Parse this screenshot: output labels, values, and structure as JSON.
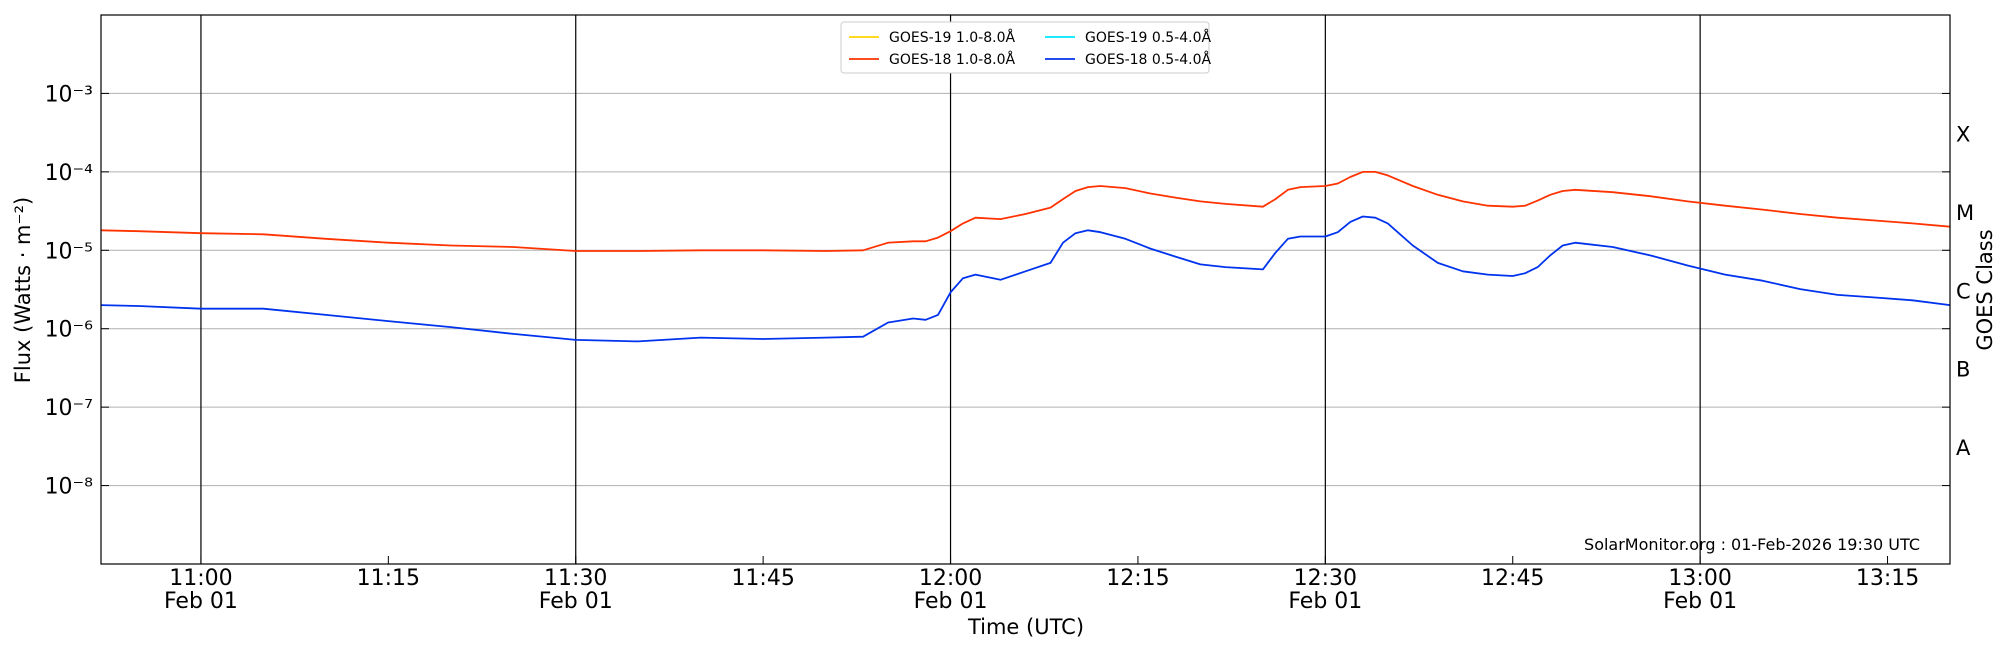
{
  "chart_data": {
    "type": "line",
    "xlabel": "Time (UTC)",
    "ylabel": "Flux (Watts · m⁻²)",
    "y2label": "GOES Class",
    "annotation": "SolarMonitor.org : 01-Feb-2026 19:30 UTC",
    "log_y": true,
    "grid": true,
    "legend": "upper center",
    "xlim": [
      "10:52",
      "13:20"
    ],
    "xticks": [
      {
        "value": "11:00",
        "label": "11:00",
        "date": "Feb 01"
      },
      "11:15",
      {
        "value": "11:30",
        "label": "11:30",
        "date": "Feb 01"
      },
      "11:45",
      {
        "value": "12:00",
        "label": "12:00",
        "date": "Feb 01"
      },
      "12:15",
      {
        "value": "12:30",
        "label": "12:30",
        "date": "Feb 01"
      },
      "12:45",
      {
        "value": "13:00",
        "label": "13:00",
        "date": "Feb 01"
      },
      "13:15"
    ],
    "ylim": [
      1e-09,
      0.01
    ],
    "yticks": [
      {
        "value": 1e-08,
        "label": "10⁻⁸"
      },
      {
        "value": 1e-07,
        "label": "10⁻⁷"
      },
      {
        "value": 1e-06,
        "label": "10⁻⁶"
      },
      {
        "value": 1e-05,
        "label": "10⁻⁵"
      },
      {
        "value": 0.0001,
        "label": "10⁻⁴"
      },
      {
        "value": 0.001,
        "label": "10⁻³"
      }
    ],
    "class_labels": [
      {
        "value": 3e-08,
        "label": "A"
      },
      {
        "value": 3e-07,
        "label": "B"
      },
      {
        "value": 3e-06,
        "label": "C"
      },
      {
        "value": 3e-05,
        "label": "M"
      },
      {
        "value": 0.0003,
        "label": "X"
      }
    ],
    "x": [
      "10:52",
      "10:55",
      "11:00",
      "11:05",
      "11:10",
      "11:15",
      "11:20",
      "11:25",
      "11:30",
      "11:35",
      "11:40",
      "11:45",
      "11:50",
      "11:53",
      "11:55",
      "11:57",
      "11:58",
      "11:59",
      "12:00",
      "12:01",
      "12:02",
      "12:04",
      "12:06",
      "12:08",
      "12:09",
      "12:10",
      "12:11",
      "12:12",
      "12:14",
      "12:16",
      "12:18",
      "12:20",
      "12:22",
      "12:25",
      "12:26",
      "12:27",
      "12:28",
      "12:30",
      "12:31",
      "12:32",
      "12:33",
      "12:34",
      "12:35",
      "12:37",
      "12:39",
      "12:41",
      "12:43",
      "12:45",
      "12:46",
      "12:47",
      "12:48",
      "12:49",
      "12:50",
      "12:53",
      "12:56",
      "12:59",
      "13:02",
      "13:05",
      "13:08",
      "13:11",
      "13:14",
      "13:17",
      "13:20"
    ],
    "series": [
      {
        "name": "GOES-19 1.0-8.0Å",
        "color": "#ffd400",
        "values": [
          null,
          null,
          null,
          null,
          null,
          null,
          null,
          null,
          null,
          null,
          null,
          null,
          null,
          null,
          null,
          null,
          null,
          null,
          null,
          null,
          null,
          null,
          null,
          null,
          null,
          null,
          null,
          null,
          null,
          null,
          null,
          null,
          null,
          null,
          null,
          null,
          null,
          null,
          null,
          null,
          null,
          null,
          null,
          null,
          null,
          null,
          null,
          null,
          null,
          null,
          null,
          null,
          null,
          null,
          null,
          null,
          null,
          null,
          null,
          null,
          null,
          null,
          null
        ]
      },
      {
        "name": "GOES-18 1.0-8.0Å",
        "color": "#ff3300",
        "values": [
          1.8e-05,
          1.75e-05,
          1.65e-05,
          1.6e-05,
          1.4e-05,
          1.25e-05,
          1.15e-05,
          1.1e-05,
          9.8e-06,
          9.8e-06,
          1e-05,
          1e-05,
          9.8e-06,
          1e-05,
          1.25e-05,
          1.3e-05,
          1.3e-05,
          1.45e-05,
          1.75e-05,
          2.2e-05,
          2.6e-05,
          2.5e-05,
          2.9e-05,
          3.5e-05,
          4.5e-05,
          5.7e-05,
          6.4e-05,
          6.6e-05,
          6.2e-05,
          5.3e-05,
          4.7e-05,
          4.2e-05,
          3.9e-05,
          3.6e-05,
          4.5e-05,
          5.9e-05,
          6.4e-05,
          6.6e-05,
          7.1e-05,
          8.6e-05,
          0.0001,
          0.0001,
          9e-05,
          6.6e-05,
          5.1e-05,
          4.2e-05,
          3.7e-05,
          3.6e-05,
          3.7e-05,
          4.3e-05,
          5.1e-05,
          5.7e-05,
          5.9e-05,
          5.5e-05,
          4.9e-05,
          4.2e-05,
          3.7e-05,
          3.3e-05,
          2.9e-05,
          2.6e-05,
          2.4e-05,
          2.2e-05,
          2e-05
        ]
      },
      {
        "name": "GOES-19 0.5-4.0Å",
        "color": "#00e5ff",
        "values": [
          null,
          null,
          null,
          null,
          null,
          null,
          null,
          null,
          null,
          null,
          null,
          null,
          null,
          null,
          null,
          null,
          null,
          null,
          null,
          null,
          null,
          null,
          null,
          null,
          null,
          null,
          null,
          null,
          null,
          null,
          null,
          null,
          null,
          null,
          null,
          null,
          null,
          null,
          null,
          null,
          null,
          null,
          null,
          null,
          null,
          null,
          null,
          null,
          null,
          null,
          null,
          null,
          null,
          null,
          null,
          null,
          null,
          null,
          null,
          null,
          null,
          null,
          null
        ]
      },
      {
        "name": "GOES-18 0.5-4.0Å",
        "color": "#0033ee",
        "values": [
          2e-06,
          1.95e-06,
          1.8e-06,
          1.8e-06,
          1.5e-06,
          1.25e-06,
          1.05e-06,
          8.6e-07,
          7.2e-07,
          6.9e-07,
          7.7e-07,
          7.4e-07,
          7.7e-07,
          7.9e-07,
          1.2e-06,
          1.35e-06,
          1.3e-06,
          1.5e-06,
          2.9e-06,
          4.4e-06,
          4.9e-06,
          4.2e-06,
          5.4e-06,
          6.9e-06,
          1.25e-05,
          1.65e-05,
          1.8e-05,
          1.7e-05,
          1.4e-05,
          1.05e-05,
          8.3e-06,
          6.6e-06,
          6.1e-06,
          5.7e-06,
          9.3e-06,
          1.4e-05,
          1.5e-05,
          1.5e-05,
          1.7e-05,
          2.3e-05,
          2.7e-05,
          2.6e-05,
          2.2e-05,
          1.15e-05,
          6.9e-06,
          5.4e-06,
          4.9e-06,
          4.7e-06,
          5.1e-06,
          6.1e-06,
          8.6e-06,
          1.15e-05,
          1.25e-05,
          1.1e-05,
          8.6e-06,
          6.4e-06,
          4.9e-06,
          4.1e-06,
          3.2e-06,
          2.7e-06,
          2.5e-06,
          2.3e-06,
          2e-06
        ]
      }
    ]
  }
}
